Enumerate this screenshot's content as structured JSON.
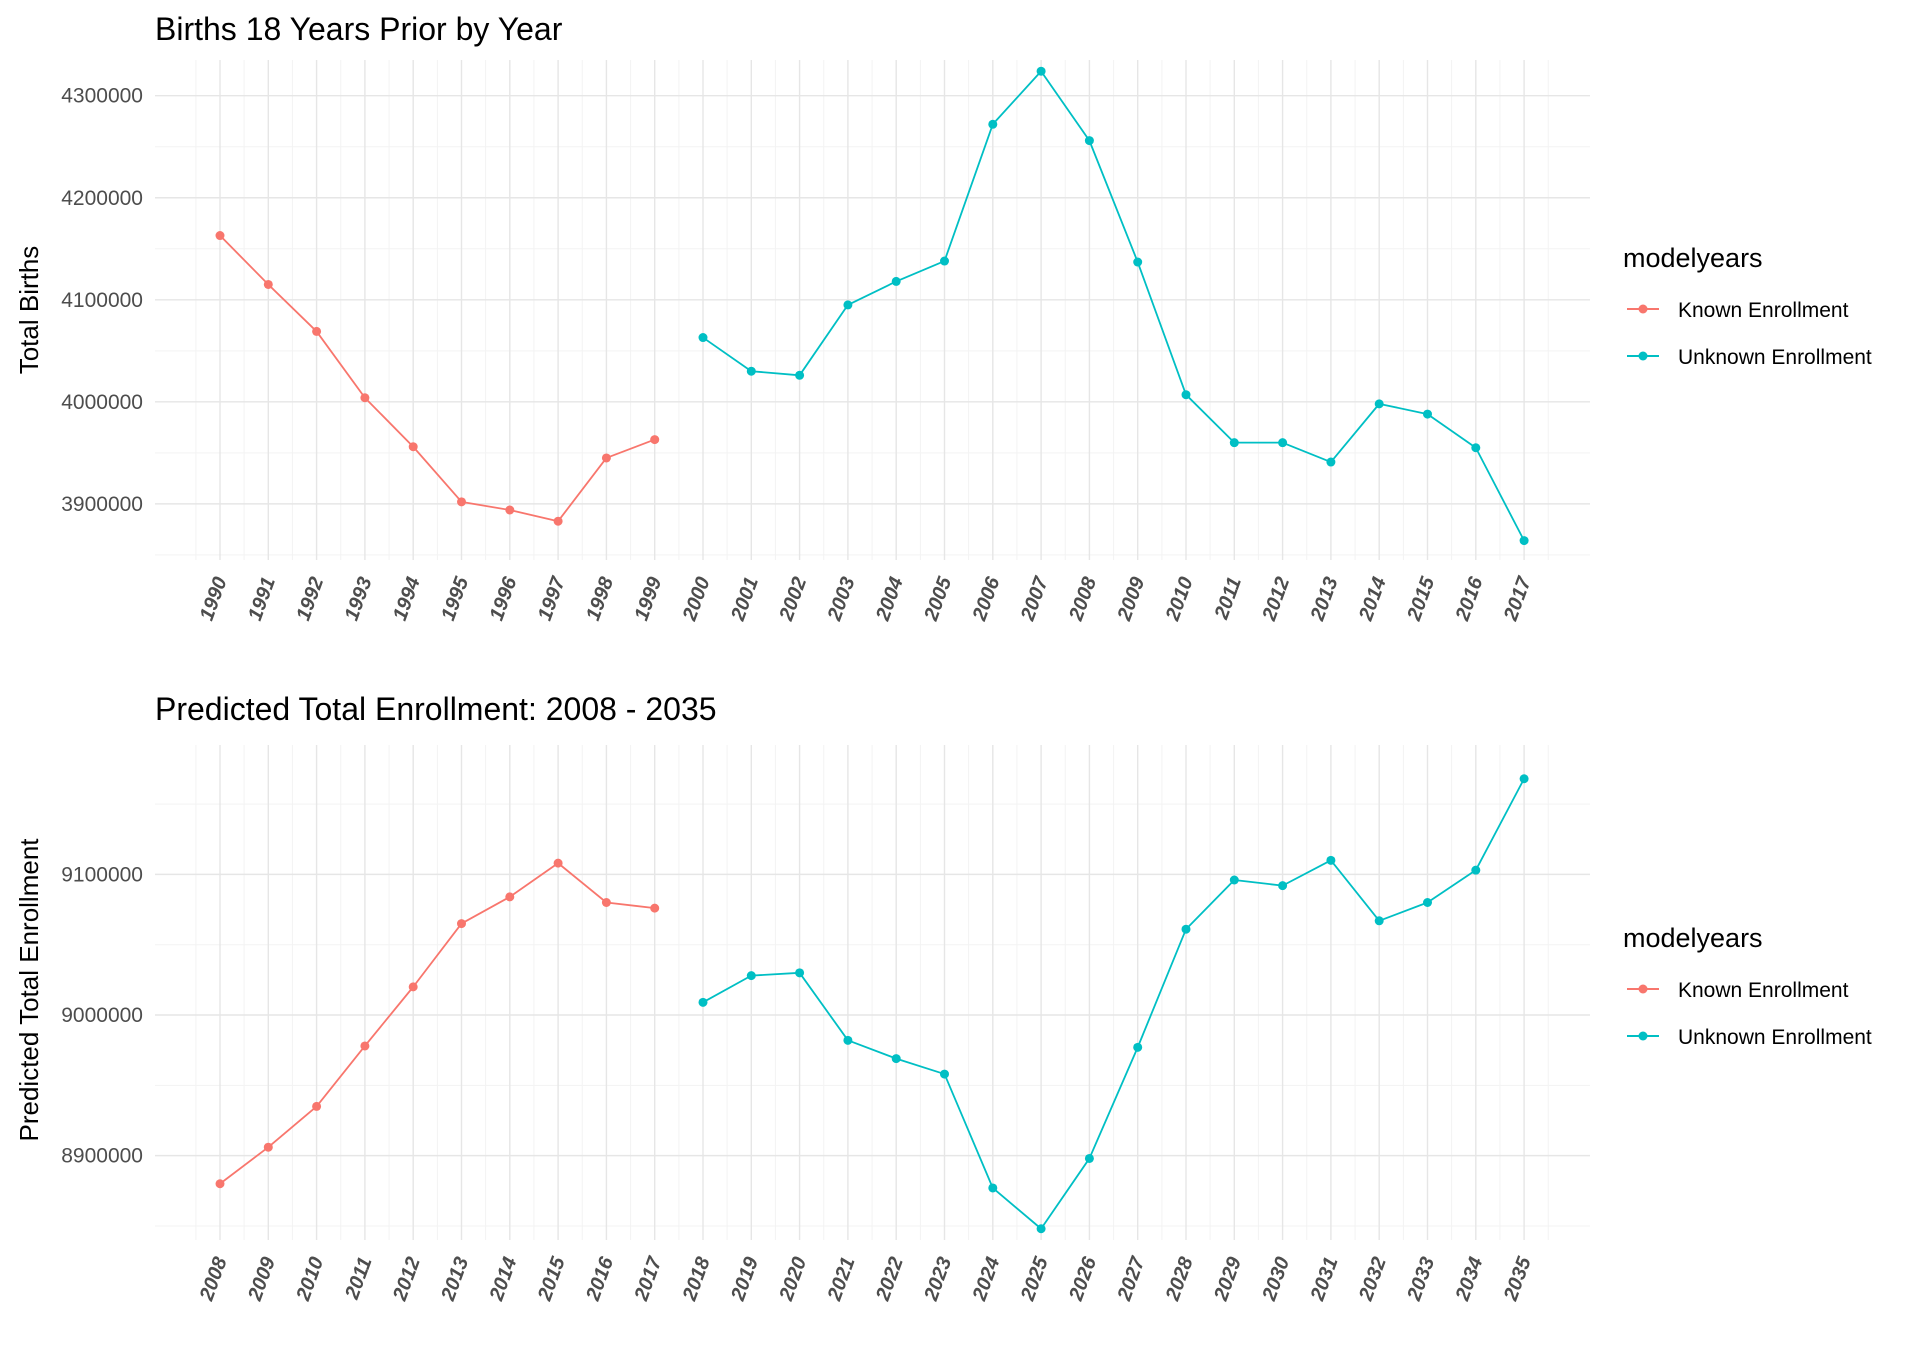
{
  "colors": {
    "known": "#F8766D",
    "unknown": "#00BFC4"
  },
  "chart_data": [
    {
      "type": "line",
      "title": "Births 18 Years Prior by Year",
      "xlabel": "",
      "ylabel": "Total Births",
      "ylim": [
        3845000,
        4335000
      ],
      "yticks": [
        3900000,
        4000000,
        4100000,
        4200000,
        4300000
      ],
      "ytick_labels": [
        "3900000",
        "4000000",
        "4100000",
        "4200000",
        "4300000"
      ],
      "grid": true,
      "legend": {
        "title": "modelyears",
        "placement": "right",
        "entries": [
          "Known Enrollment",
          "Unknown Enrollment"
        ]
      },
      "categories": [
        "1990",
        "1991",
        "1992",
        "1993",
        "1994",
        "1995",
        "1996",
        "1997",
        "1998",
        "1999",
        "2000",
        "2001",
        "2002",
        "2003",
        "2004",
        "2005",
        "2006",
        "2007",
        "2008",
        "2009",
        "2010",
        "2011",
        "2012",
        "2013",
        "2014",
        "2015",
        "2016",
        "2017"
      ],
      "series": [
        {
          "name": "Known Enrollment",
          "x": [
            "1990",
            "1991",
            "1992",
            "1993",
            "1994",
            "1995",
            "1996",
            "1997",
            "1998",
            "1999"
          ],
          "values": [
            4163000,
            4115000,
            4069000,
            4004000,
            3956000,
            3902000,
            3894000,
            3883000,
            3945000,
            3963000
          ]
        },
        {
          "name": "Unknown Enrollment",
          "x": [
            "2000",
            "2001",
            "2002",
            "2003",
            "2004",
            "2005",
            "2006",
            "2007",
            "2008",
            "2009",
            "2010",
            "2011",
            "2012",
            "2013",
            "2014",
            "2015",
            "2016",
            "2017"
          ],
          "values": [
            4063000,
            4030000,
            4026000,
            4095000,
            4118000,
            4138000,
            4272000,
            4324000,
            4256000,
            4137000,
            4007000,
            3960000,
            3960000,
            3941000,
            3998000,
            3988000,
            3955000,
            3864000
          ]
        }
      ]
    },
    {
      "type": "line",
      "title": "Predicted Total Enrollment: 2008 - 2035",
      "xlabel": "",
      "ylabel": "Predicted Total Enrollment",
      "ylim": [
        8840000,
        9192000
      ],
      "yticks": [
        8900000,
        9000000,
        9100000
      ],
      "ytick_labels": [
        "8900000",
        "9000000",
        "9100000"
      ],
      "grid": true,
      "legend": {
        "title": "modelyears",
        "placement": "right",
        "entries": [
          "Known Enrollment",
          "Unknown Enrollment"
        ]
      },
      "categories": [
        "2008",
        "2009",
        "2010",
        "2011",
        "2012",
        "2013",
        "2014",
        "2015",
        "2016",
        "2017",
        "2018",
        "2019",
        "2020",
        "2021",
        "2022",
        "2023",
        "2024",
        "2025",
        "2026",
        "2027",
        "2028",
        "2029",
        "2030",
        "2031",
        "2032",
        "2033",
        "2034",
        "2035"
      ],
      "series": [
        {
          "name": "Known Enrollment",
          "x": [
            "2008",
            "2009",
            "2010",
            "2011",
            "2012",
            "2013",
            "2014",
            "2015",
            "2016",
            "2017"
          ],
          "values": [
            8880000,
            8906000,
            8935000,
            8978000,
            9020000,
            9065000,
            9084000,
            9108000,
            9080000,
            9076000
          ]
        },
        {
          "name": "Unknown Enrollment",
          "x": [
            "2018",
            "2019",
            "2020",
            "2021",
            "2022",
            "2023",
            "2024",
            "2025",
            "2026",
            "2027",
            "2028",
            "2029",
            "2030",
            "2031",
            "2032",
            "2033",
            "2034",
            "2035"
          ],
          "values": [
            9009000,
            9028000,
            9030000,
            8982000,
            8969000,
            8958000,
            8877000,
            8848000,
            8898000,
            8977000,
            9061000,
            9096000,
            9092000,
            9110000,
            9067000,
            9080000,
            9103000,
            9168000
          ]
        }
      ]
    }
  ]
}
